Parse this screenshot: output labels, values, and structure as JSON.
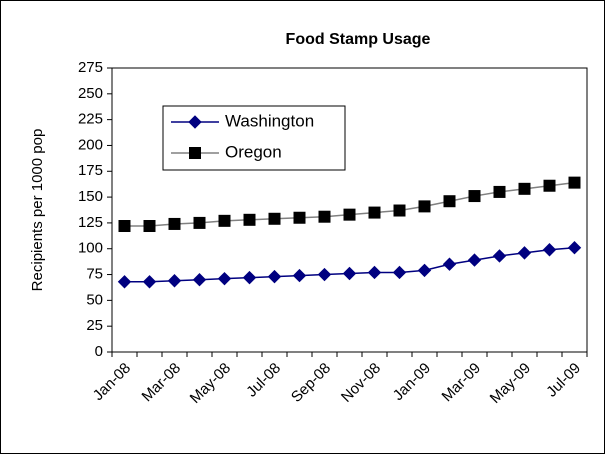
{
  "chart_data": {
    "type": "line",
    "title": "Food Stamp Usage",
    "ylabel": "Recipients per 1000 pop",
    "categories": [
      "Jan-08",
      null,
      "Mar-08",
      null,
      "May-08",
      null,
      "Jul-08",
      null,
      "Sep-08",
      null,
      "Nov-08",
      null,
      "Jan-09",
      null,
      "Mar-09",
      null,
      "May-09",
      null,
      "Jul-09"
    ],
    "series": [
      {
        "name": "Washington",
        "color": "#000080",
        "marker": "diamond",
        "values": [
          68,
          68,
          69,
          70,
          71,
          72,
          73,
          74,
          75,
          76,
          77,
          77,
          79,
          85,
          89,
          93,
          96,
          99,
          101
        ]
      },
      {
        "name": "Oregon",
        "color": "#000000",
        "marker": "square",
        "values": [
          122,
          122,
          124,
          125,
          127,
          128,
          129,
          130,
          131,
          133,
          135,
          137,
          141,
          146,
          151,
          155,
          158,
          161,
          164
        ]
      }
    ],
    "ylim": [
      0,
      275
    ],
    "yticks": [
      0,
      25,
      50,
      75,
      100,
      125,
      150,
      175,
      200,
      225,
      250,
      275
    ],
    "grid": false,
    "legend": "upper left"
  }
}
